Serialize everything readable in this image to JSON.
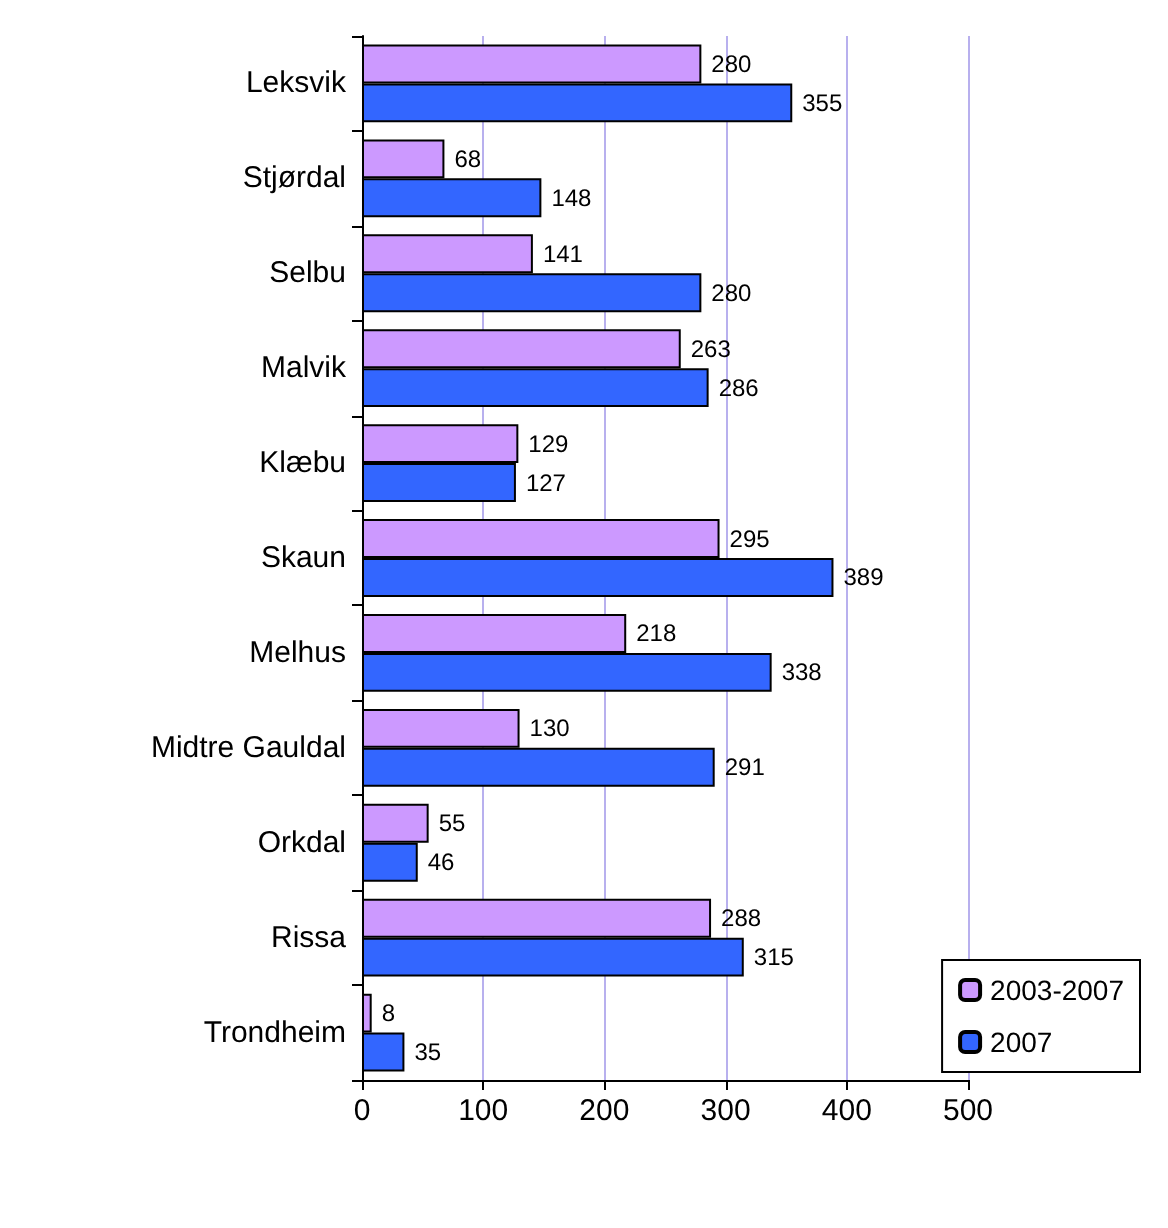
{
  "chart_data": {
    "type": "bar",
    "orientation": "horizontal",
    "categories": [
      "Leksvik",
      "Stjørdal",
      "Selbu",
      "Malvik",
      "Klæbu",
      "Skaun",
      "Melhus",
      "Midtre Gauldal",
      "Orkdal",
      "Rissa",
      "Trondheim"
    ],
    "series": [
      {
        "name": "2003-2007",
        "color": "#cc99ff",
        "values": [
          280,
          68,
          141,
          263,
          129,
          295,
          218,
          130,
          55,
          288,
          8
        ]
      },
      {
        "name": "2007",
        "color": "#3366ff",
        "values": [
          355,
          148,
          280,
          286,
          127,
          389,
          338,
          291,
          46,
          315,
          35
        ]
      }
    ],
    "xlim": [
      0,
      500
    ],
    "xticks": [
      0,
      100,
      200,
      300,
      400,
      500
    ],
    "grid": "x",
    "legend": "right",
    "data_labels": true
  }
}
